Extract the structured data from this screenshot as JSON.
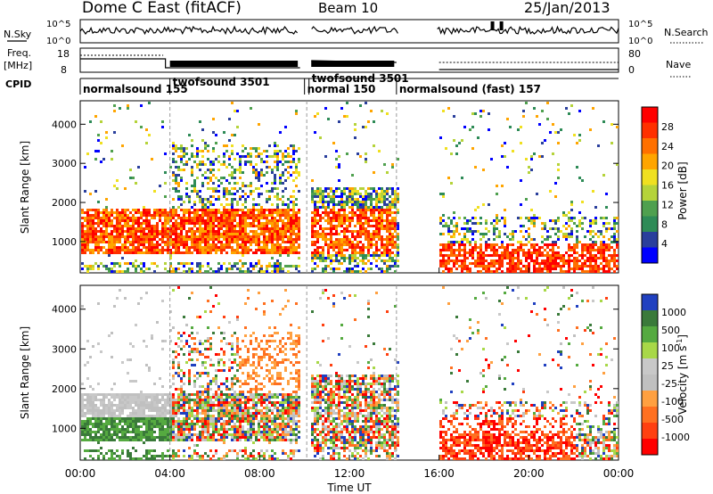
{
  "header": {
    "station": "Dome C East (fitACF)",
    "beam": "Beam 10",
    "date": "25/Jan/2013"
  },
  "noise_panel": {
    "left_label": "N.Sky",
    "right_label": "N.Search",
    "left_ticks": [
      "10^5",
      "10^0"
    ],
    "right_ticks": [
      "10^5",
      "10^0"
    ]
  },
  "freq_panel": {
    "left_label_line1": "Freq.",
    "left_label_line2": "[MHz]",
    "right_label": "Nave",
    "left_ticks": [
      "18",
      "8"
    ],
    "right_ticks": [
      "80",
      "0"
    ]
  },
  "cpid": {
    "label": "CPID",
    "segments": [
      {
        "name": "normalsound",
        "id": "155",
        "start_h": 0.0
      },
      {
        "name": "twofsound",
        "id": "3501",
        "start_h": 4.0
      },
      {
        "name": "normal",
        "id": "150",
        "start_h": 10.0
      },
      {
        "name": "twofsound",
        "id": "3501",
        "start_h": 10.2
      },
      {
        "name": "normalsound (fast)",
        "id": "157",
        "start_h": 14.1
      }
    ]
  },
  "colors": {
    "power_scale": [
      "#0000ff",
      "#2a3f9c",
      "#2e8b57",
      "#4fa04f",
      "#b5d33a",
      "#f0e020",
      "#ffa500",
      "#ff7000",
      "#ff3000",
      "#ff0000"
    ],
    "velocity_scale": [
      "#2040c0",
      "#3a7a3a",
      "#55aa40",
      "#a8d848",
      "#c8c8c8",
      "#c0c0c0",
      "#ffa040",
      "#ff7020",
      "#ff4010",
      "#ff0000"
    ]
  },
  "chart_data": [
    {
      "type": "heatmap",
      "name": "Power",
      "ylabel": "Slant Range [km]",
      "yticks": [
        "1000",
        "2000",
        "3000",
        "4000"
      ],
      "ylim": [
        200,
        4600
      ],
      "xlim_h": [
        0,
        24
      ],
      "colorbar_label": "Power [dB]",
      "colorbar_ticks": [
        "28",
        "24",
        "20",
        "16",
        "12",
        "8",
        "4"
      ],
      "colorbar_range": [
        0,
        32
      ],
      "data_gaps_h": [
        [
          14.2,
          15.9
        ]
      ]
    },
    {
      "type": "heatmap",
      "name": "Velocity",
      "ylabel": "Slant Range [km]",
      "yticks": [
        "1000",
        "2000",
        "3000",
        "4000"
      ],
      "ylim": [
        200,
        4600
      ],
      "xlim_h": [
        0,
        24
      ],
      "colorbar_label": "Velocity [m s",
      "colorbar_label_sup": "-1",
      "colorbar_label_end": "]",
      "colorbar_ticks": [
        "1000",
        "500",
        "100",
        "25",
        "-25",
        "-100",
        "-500",
        "-1000"
      ],
      "data_gaps_h": [
        [
          14.2,
          15.9
        ]
      ]
    }
  ],
  "xaxis": {
    "ticks": [
      "00:00",
      "04:00",
      "08:00",
      "12:00",
      "16:00",
      "20:00",
      "00:00"
    ],
    "label": "Time UT"
  }
}
